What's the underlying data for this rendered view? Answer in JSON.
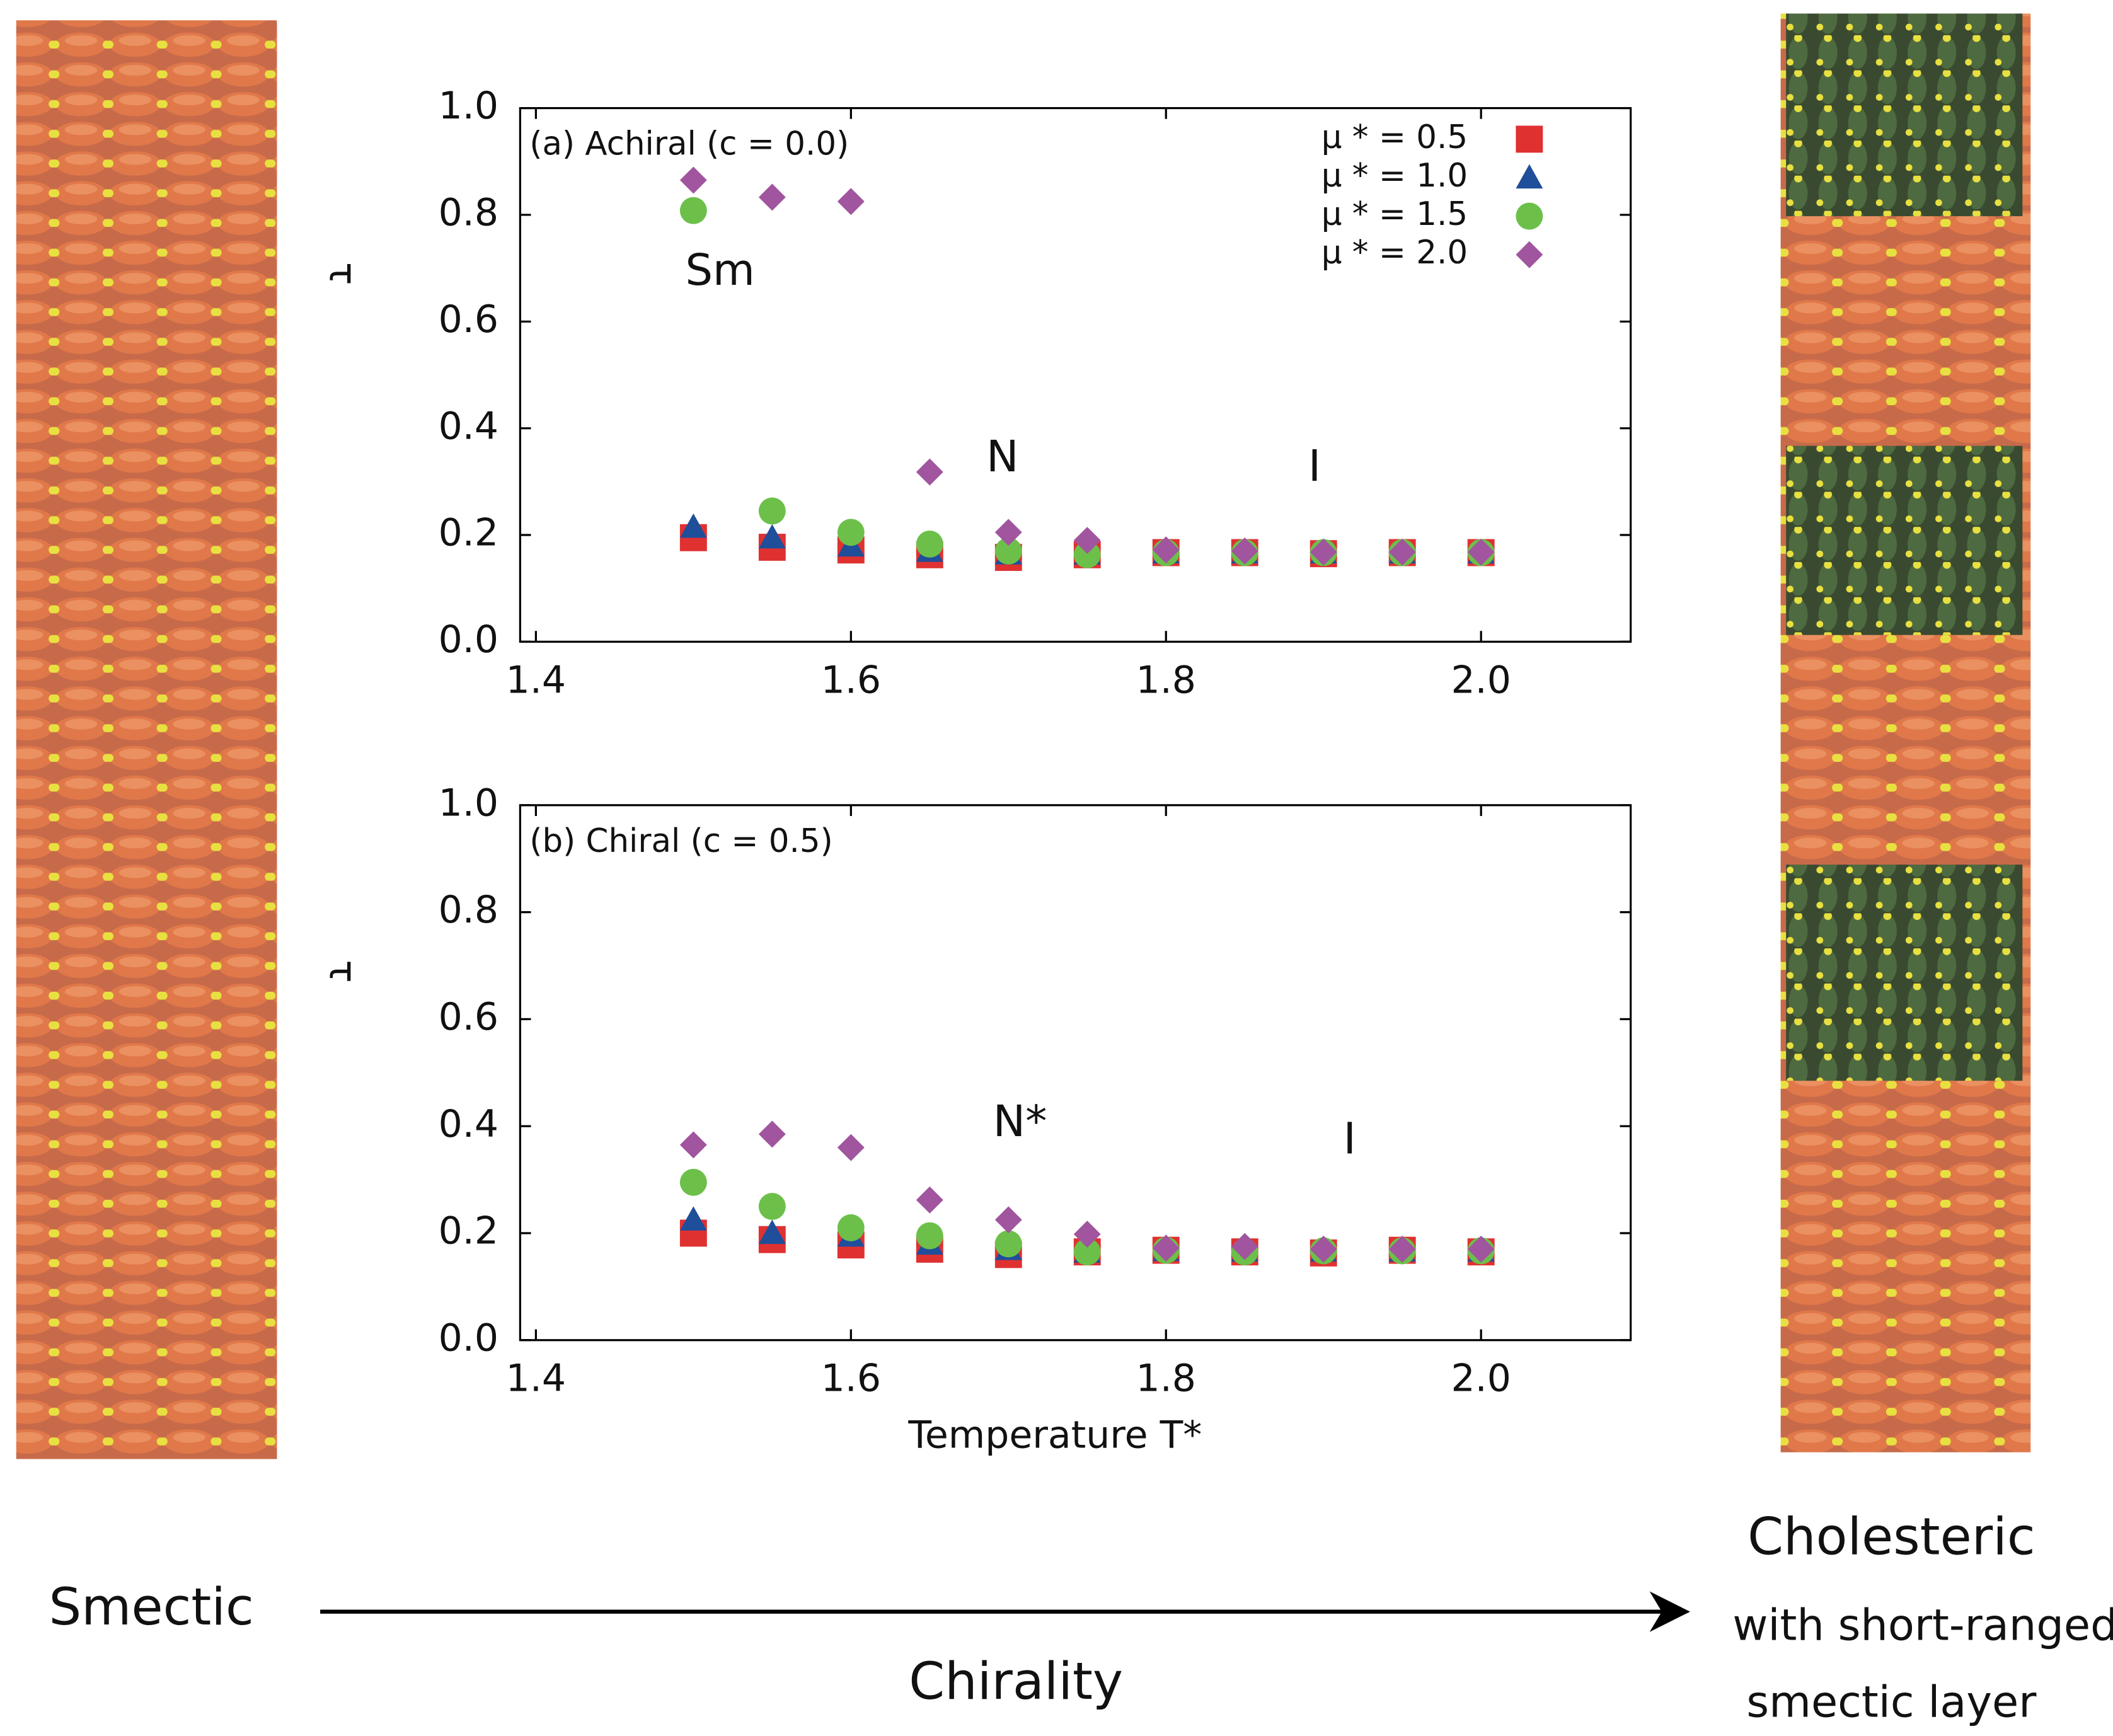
{
  "chart_data": [
    {
      "type": "scatter",
      "title": "(a) Achiral (c = 0.0)",
      "ylabel": "τ",
      "x": [
        1.5,
        1.55,
        1.6,
        1.65,
        1.7,
        1.75,
        1.8,
        1.85,
        1.9,
        1.95,
        2.0
      ],
      "series": [
        {
          "name": "μ * = 0.5",
          "color": "#e03131",
          "marker": "square",
          "values": [
            0.195,
            0.177,
            0.172,
            0.163,
            0.158,
            0.163,
            0.167,
            0.167,
            0.165,
            0.167,
            0.167
          ]
        },
        {
          "name": "μ * = 1.0",
          "color": "#1f4e9a",
          "marker": "triangle",
          "values": [
            0.215,
            0.195,
            0.18,
            0.17,
            0.165,
            0.165,
            0.167,
            0.167,
            0.167,
            0.167,
            0.167
          ]
        },
        {
          "name": "μ * = 1.5",
          "color": "#6cc04a",
          "marker": "circle",
          "values": [
            0.808,
            0.245,
            0.205,
            0.183,
            0.17,
            0.163,
            0.167,
            0.167,
            0.167,
            0.167,
            0.167
          ]
        },
        {
          "name": "μ * = 2.0",
          "color": "#a0559e",
          "marker": "diamond",
          "values": [
            0.865,
            0.833,
            0.825,
            0.318,
            0.205,
            0.19,
            0.172,
            0.17,
            0.168,
            0.168,
            0.168
          ]
        }
      ],
      "annotations": [
        "Sm",
        "N",
        "I"
      ],
      "xlim": [
        1.39,
        2.095
      ],
      "ylim": [
        0,
        1
      ],
      "xticks": [
        1.4,
        1.6,
        1.8,
        {
          "value": 2,
          "label": "2.0"
        }
      ],
      "yticks": [
        {
          "value": 0,
          "label": "0.0"
        },
        0.2,
        0.4,
        0.6,
        0.8,
        {
          "value": 1,
          "label": "1.0"
        }
      ]
    },
    {
      "type": "scatter",
      "title": "(b) Chiral (c = 0.5)",
      "ylabel": "τ",
      "xlabel": "Temperature T*",
      "x": [
        1.5,
        1.55,
        1.6,
        1.65,
        1.7,
        1.75,
        1.8,
        1.85,
        1.9,
        1.95,
        2.0
      ],
      "series": [
        {
          "name": "μ * = 0.5",
          "color": "#e03131",
          "marker": "square",
          "values": [
            0.2,
            0.188,
            0.178,
            0.17,
            0.16,
            0.165,
            0.168,
            0.165,
            0.163,
            0.168,
            0.165
          ]
        },
        {
          "name": "μ * = 1.0",
          "color": "#1f4e9a",
          "marker": "triangle",
          "values": [
            0.225,
            0.2,
            0.195,
            0.18,
            0.17,
            0.165,
            0.168,
            0.167,
            0.167,
            0.167,
            0.167
          ]
        },
        {
          "name": "μ * = 1.5",
          "color": "#6cc04a",
          "marker": "circle",
          "values": [
            0.295,
            0.25,
            0.21,
            0.195,
            0.18,
            0.165,
            0.168,
            0.165,
            0.167,
            0.167,
            0.167
          ]
        },
        {
          "name": "μ * = 2.0",
          "color": "#a0559e",
          "marker": "diamond",
          "values": [
            0.365,
            0.385,
            0.36,
            0.262,
            0.225,
            0.198,
            0.172,
            0.175,
            0.17,
            0.17,
            0.17
          ]
        }
      ],
      "annotations": [
        "N*",
        "I"
      ],
      "xlim": [
        1.39,
        2.095
      ],
      "ylim": [
        0,
        1
      ],
      "xticks": [
        1.4,
        1.6,
        1.8,
        {
          "value": 2,
          "label": "2.0"
        }
      ],
      "yticks": [
        {
          "value": 0,
          "label": "0.0"
        },
        0.2,
        0.4,
        0.6,
        0.8,
        {
          "value": 1,
          "label": "1.0"
        }
      ]
    }
  ],
  "labels": {
    "left": "Smectic",
    "arrow": "Chirality",
    "right_title": "Cholesteric",
    "right_line1": "with short-ranged",
    "right_line2": "smectic layer"
  }
}
